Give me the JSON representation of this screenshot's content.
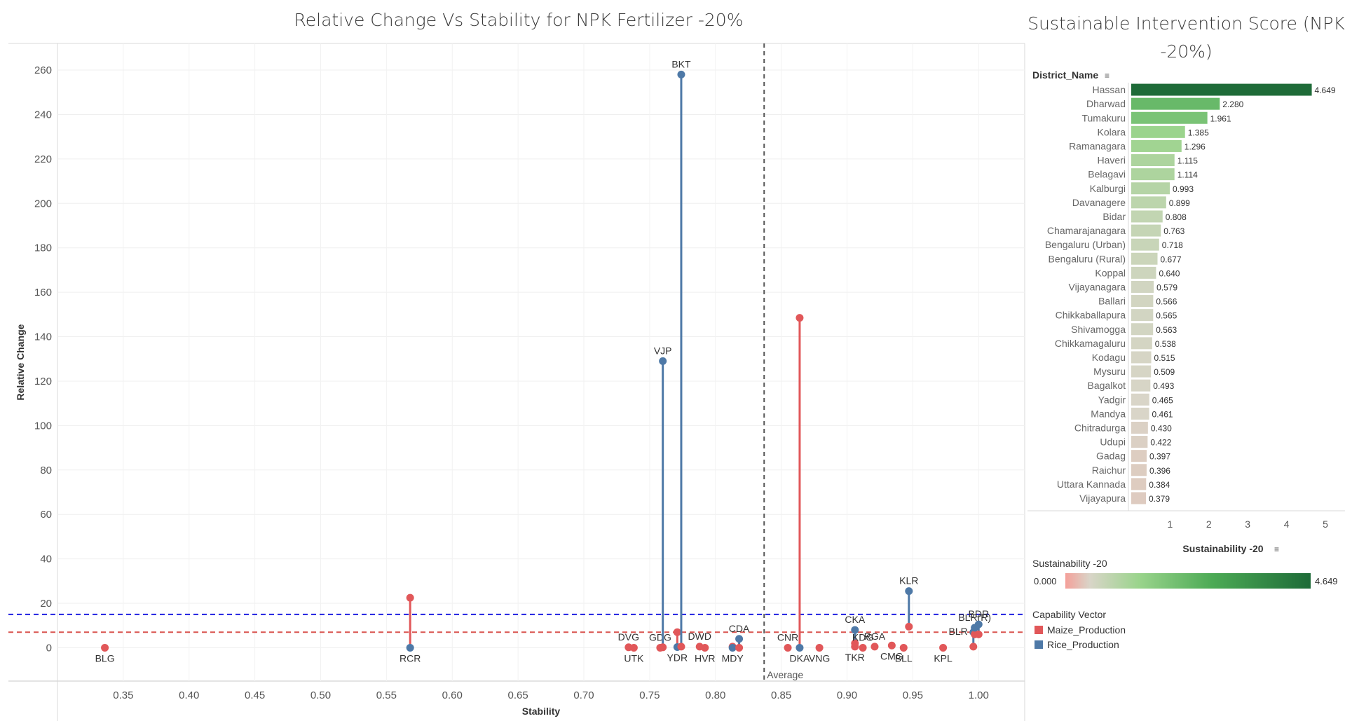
{
  "chart_data": [
    {
      "type": "scatter",
      "title": "Relative Change Vs Stability for NPK Fertilizer -20%",
      "xlabel": "Stability",
      "ylabel": "Relative Change",
      "xlim": [
        0.3,
        1.035
      ],
      "ylim": [
        -15,
        272
      ],
      "x_ticks": [
        0.35,
        0.4,
        0.45,
        0.5,
        0.55,
        0.6,
        0.65,
        0.7,
        0.75,
        0.8,
        0.85,
        0.9,
        0.95,
        1.0
      ],
      "x_tick_labels": [
        "0.35",
        "0.40",
        "0.45",
        "0.50",
        "0.55",
        "0.60",
        "0.65",
        "0.70",
        "0.75",
        "0.80",
        "0.85",
        "0.90",
        "0.95",
        "1.00"
      ],
      "y_ticks": [
        0,
        20,
        40,
        60,
        80,
        100,
        120,
        140,
        160,
        180,
        200,
        220,
        240,
        260
      ],
      "y_tick_labels": [
        "0",
        "20",
        "40",
        "60",
        "80",
        "100",
        "120",
        "140",
        "160",
        "180",
        "200",
        "220",
        "240",
        "260"
      ],
      "grid": true,
      "colors": {
        "maize": "#e15759",
        "rice": "#4e79a7",
        "connector_maize": "#e15759",
        "connector_rice": "#4e79a7"
      },
      "reference_lines": [
        {
          "axis": "x",
          "value": 0.837,
          "label": "Average",
          "color": "#555555",
          "style": "dashed"
        },
        {
          "axis": "y",
          "value": 15,
          "label": "",
          "color": "#1f1fe0",
          "style": "dashed"
        },
        {
          "axis": "y",
          "value": 7,
          "label": "",
          "color": "#d9534f",
          "style": "dashed"
        }
      ],
      "districts": [
        {
          "code": "BLG",
          "x": 0.336,
          "maize": 0,
          "rice": null,
          "label_pos": "below"
        },
        {
          "code": "RCR",
          "x": 0.568,
          "maize": 22.5,
          "rice": 0,
          "label_pos": "below"
        },
        {
          "code": "DVG",
          "x": 0.734,
          "maize": 0.2,
          "rice": null,
          "label_pos": "above"
        },
        {
          "code": "UTK",
          "x": 0.738,
          "maize": 0,
          "rice": null,
          "label_pos": "below"
        },
        {
          "code": "GDG",
          "x": 0.758,
          "maize": 0,
          "rice": null,
          "label_pos": "above"
        },
        {
          "code": "VJP",
          "x": 0.76,
          "maize": 0.2,
          "rice": 129,
          "label_pos": "above"
        },
        {
          "code": "YDR",
          "x": 0.771,
          "maize": 7,
          "rice": 0.3,
          "label_pos": "below"
        },
        {
          "code": "BKT",
          "x": 0.774,
          "maize": 0.5,
          "rice": 258,
          "label_pos": "above"
        },
        {
          "code": "HVR",
          "x": 0.792,
          "maize": 0,
          "rice": null,
          "label_pos": "below"
        },
        {
          "code": "DWD",
          "x": 0.788,
          "maize": 0.5,
          "rice": null,
          "label_pos": "above"
        },
        {
          "code": "MDY",
          "x": 0.813,
          "maize": 0.5,
          "rice": 0,
          "label_pos": "below"
        },
        {
          "code": "CDA",
          "x": 0.818,
          "maize": 0,
          "rice": 4,
          "label_pos": "above"
        },
        {
          "code": "CNR",
          "x": 0.855,
          "maize": 0,
          "rice": null,
          "label_pos": "above"
        },
        {
          "code": "DKA",
          "x": 0.864,
          "maize": 148.5,
          "rice": 0,
          "label_pos": "below"
        },
        {
          "code": "VNG",
          "x": 0.879,
          "maize": 0,
          "rice": null,
          "label_pos": "below"
        },
        {
          "code": "TKR",
          "x": 0.906,
          "maize": 0.5,
          "rice": null,
          "label_pos": "below"
        },
        {
          "code": "CKA",
          "x": 0.906,
          "maize": 2,
          "rice": 8,
          "label_pos": "above"
        },
        {
          "code": "KDG",
          "x": 0.912,
          "maize": 0,
          "rice": null,
          "label_pos": "above"
        },
        {
          "code": "RGA",
          "x": 0.921,
          "maize": 0.5,
          "rice": null,
          "label_pos": "above"
        },
        {
          "code": "CMG",
          "x": 0.934,
          "maize": 1,
          "rice": null,
          "label_pos": "below"
        },
        {
          "code": "BLL",
          "x": 0.943,
          "maize": 0,
          "rice": null,
          "label_pos": "below"
        },
        {
          "code": "KLR",
          "x": 0.947,
          "maize": 9.5,
          "rice": 25.5,
          "label_pos": "above"
        },
        {
          "code": "KPL",
          "x": 0.973,
          "maize": 0,
          "rice": null,
          "label_pos": "below"
        },
        {
          "code": "BLR",
          "x": 0.996,
          "maize": 0.5,
          "rice": 7,
          "label_pos": "left"
        },
        {
          "code": "BLR(R)",
          "x": 0.997,
          "maize": 6,
          "rice": 9,
          "label_pos": "above"
        },
        {
          "code": "BDR",
          "x": 1.0,
          "maize": 6,
          "rice": 10.5,
          "label_pos": "above"
        }
      ]
    },
    {
      "type": "bar",
      "orientation": "horizontal",
      "title": "Sustainable Intervention Score (NPK -20%)",
      "category_header": "District_Name",
      "xlabel": "Sustainability -20",
      "xlim": [
        0,
        5
      ],
      "x_ticks": [
        1,
        2,
        3,
        4,
        5
      ],
      "x_tick_labels": [
        "1",
        "2",
        "3",
        "4",
        "5"
      ],
      "categories": [
        "Hassan",
        "Dharwad",
        "Tumakuru",
        "Kolara",
        "Ramanagara",
        "Haveri",
        "Belagavi",
        "Kalburgi",
        "Davanagere",
        "Bidar",
        "Chamarajanagara",
        "Bengaluru (Urban)",
        "Bengaluru (Rural)",
        "Koppal",
        "Vijayanagara",
        "Ballari",
        "Chikkaballapura",
        "Shivamogga",
        "Chikkamagaluru",
        "Kodagu",
        "Mysuru",
        "Bagalkot",
        "Yadgir",
        "Mandya",
        "Chitradurga",
        "Udupi",
        "Gadag",
        "Raichur",
        "Uttara Kannada",
        "Vijayapura"
      ],
      "values": [
        4.649,
        2.28,
        1.961,
        1.385,
        1.296,
        1.115,
        1.114,
        0.993,
        0.899,
        0.808,
        0.763,
        0.718,
        0.677,
        0.64,
        0.579,
        0.566,
        0.565,
        0.563,
        0.538,
        0.515,
        0.509,
        0.493,
        0.465,
        0.461,
        0.43,
        0.422,
        0.397,
        0.396,
        0.384,
        0.379
      ],
      "value_labels": [
        "4.649",
        "2.280",
        "1.961",
        "1.385",
        "1.296",
        "1.115",
        "1.114",
        "0.993",
        "0.899",
        "0.808",
        "0.763",
        "0.718",
        "0.677",
        "0.640",
        "0.579",
        "0.566",
        "0.565",
        "0.563",
        "0.538",
        "0.515",
        "0.509",
        "0.493",
        "0.465",
        "0.461",
        "0.430",
        "0.422",
        "0.397",
        "0.396",
        "0.384",
        "0.379"
      ]
    }
  ],
  "legend": {
    "color_title": "Sustainability -20",
    "color_min": "0.000",
    "color_max": "4.649",
    "color_stops": [
      "#f4a09a",
      "#d9d5c8",
      "#9ad48c",
      "#4caa55",
      "#1e6b38"
    ],
    "series_title": "Capability Vector",
    "series": [
      {
        "label": "Maize_Production",
        "color": "#e15759"
      },
      {
        "label": "Rice_Production",
        "color": "#4e79a7"
      }
    ]
  }
}
